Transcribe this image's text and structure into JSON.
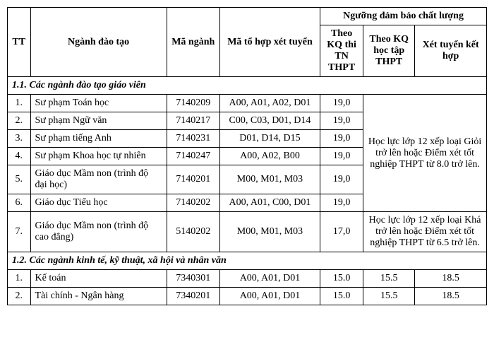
{
  "headers": {
    "tt": "TT",
    "nganh": "Ngành đào tạo",
    "ma_nganh": "Mã ngành",
    "ma_to_hop": "Mã tổ hợp xét tuyển",
    "nguong_group": "Ngưỡng đảm bảo chất lượng",
    "theo_thpt": "Theo KQ thi TN THPT",
    "theo_hoc_tap": "Theo KQ học tập THPT",
    "xet_ket_hop": "Xét tuyển kết hợp"
  },
  "section1": {
    "title": "1.1. Các ngành đào tạo giáo viên",
    "rows": [
      {
        "tt": "1.",
        "name": "Sư phạm Toán học",
        "code": "7140209",
        "comb": "A00, A01, A02, D01",
        "thpt": "19,0"
      },
      {
        "tt": "2.",
        "name": "Sư phạm Ngữ văn",
        "code": "7140217",
        "comb": "C00, C03, D01, D14",
        "thpt": "19,0"
      },
      {
        "tt": "3.",
        "name": "Sư phạm tiếng Anh",
        "code": "7140231",
        "comb": "D01, D14, D15",
        "thpt": "19,0"
      },
      {
        "tt": "4.",
        "name": "Sư phạm Khoa học tự nhiên",
        "code": "7140247",
        "comb": "A00, A02, B00",
        "thpt": "19,0"
      },
      {
        "tt": "5.",
        "name": "Giáo dục Mầm non (trình độ đại học)",
        "code": "7140201",
        "comb": "M00, M01, M03",
        "thpt": "19,0"
      },
      {
        "tt": "6.",
        "name": "Giáo dục Tiểu học",
        "code": "7140202",
        "comb": "A00, A01, C00, D01",
        "thpt": "19,0"
      }
    ],
    "note_merged_1": "Học lực lớp 12 xếp loại Giỏi trở lên hoặc Điểm xét tốt nghiệp THPT từ 8.0 trở lên.",
    "row7": {
      "tt": "7.",
      "name": "Giáo dục Mầm non (trình độ cao đẳng)",
      "code": "5140202",
      "comb": "M00, M01, M03",
      "thpt": "17,0"
    },
    "note_merged_2": "Học lực lớp 12 xếp loại Khá trở lên hoặc Điểm xét tốt nghiệp THPT từ 6.5 trở lên."
  },
  "section2": {
    "title": "1.2. Các ngành kinh tế, kỹ thuật, xã hội và nhân văn",
    "rows": [
      {
        "tt": "1.",
        "name": "Kế toán",
        "code": "7340301",
        "comb": "A00, A01, D01",
        "thpt": "15.0",
        "hoc": "15.5",
        "ket": "18.5"
      },
      {
        "tt": "2.",
        "name": "Tài chính - Ngân hàng",
        "code": "7340201",
        "comb": "A00, A01, D01",
        "thpt": "15.0",
        "hoc": "15.5",
        "ket": "18.5"
      }
    ]
  },
  "style": {
    "font_family": "Times New Roman",
    "base_fontsize_pt": 11,
    "border_color": "#000000",
    "background_color": "#ffffff",
    "text_color": "#000000"
  }
}
